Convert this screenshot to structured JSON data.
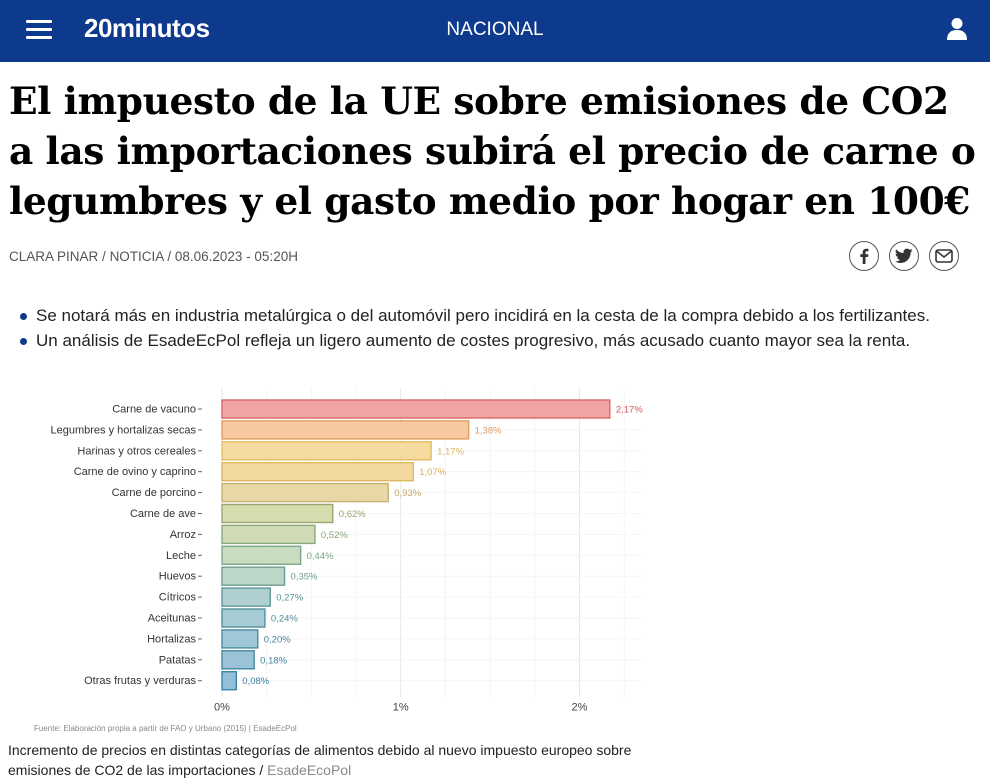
{
  "header": {
    "logo": "20minutos",
    "section": "NACIONAL"
  },
  "article": {
    "headline": "El impuesto de la UE sobre emisiones de CO2 a las importaciones subirá el precio de carne o legumbres y el gasto medio por hogar en 100€",
    "author": "CLARA PINAR",
    "type": "NOTICIA",
    "date": "08.06.2023 - 05:20H",
    "summary": [
      "Se notará más en industria metalúrgica o del automóvil pero incidirá en la cesta de la compra debido a los fertilizantes.",
      "Un análisis de EsadeEcPol refleja un ligero aumento de costes progresivo, más acusado cuanto mayor sea la renta."
    ],
    "caption": "Incremento de precios en distintas categorías de alimentos debido al nuevo impuesto europeo sobre emisiones de CO2 de las importaciones",
    "caption_separator": "/",
    "caption_credit": "EsadeEcoPol"
  },
  "share_icons": [
    "facebook-icon",
    "twitter-icon",
    "email-icon"
  ],
  "colors": {
    "brand": "#0d3a8c"
  },
  "chart_data": {
    "type": "bar",
    "orientation": "horizontal",
    "categories": [
      "Carne de vacuno",
      "Legumbres y hortalizas secas",
      "Harinas y otros cereales",
      "Carne de ovino y caprino",
      "Carne de porcino",
      "Carne de ave",
      "Arroz",
      "Leche",
      "Huevos",
      "Cítricos",
      "Aceitunas",
      "Hortalizas",
      "Patatas",
      "Otras frutas y verduras"
    ],
    "values": [
      2.17,
      1.38,
      1.17,
      1.07,
      0.93,
      0.62,
      0.52,
      0.44,
      0.35,
      0.27,
      0.24,
      0.2,
      0.18,
      0.08
    ],
    "value_labels": [
      "2,17%",
      "1,38%",
      "1,17%",
      "1,07%",
      "0,93%",
      "0,62%",
      "0,52%",
      "0,44%",
      "0,35%",
      "0,27%",
      "0,24%",
      "0,20%",
      "0,18%",
      "0,08%"
    ],
    "bar_colors": [
      "#f2a3a3",
      "#f6c9a0",
      "#f5dba0",
      "#f3d9a0",
      "#e8d8a8",
      "#d7dcae",
      "#cfdcb6",
      "#c8dcc0",
      "#bcd6c8",
      "#b0cfd0",
      "#a7cbd4",
      "#a0c7d6",
      "#9bc3d8",
      "#93bfda"
    ],
    "bar_stroke_colors": [
      "#d96a6a",
      "#e0a060",
      "#e2be60",
      "#ddb860",
      "#c8b070",
      "#9aa870",
      "#8aa878",
      "#7ea88a",
      "#6e9e92",
      "#5e969c",
      "#52909e",
      "#4a8ca2",
      "#4488a4",
      "#3c84a6"
    ],
    "label_colors": [
      "#d85a5a",
      "#e09a60",
      "#ddb860",
      "#d8b060",
      "#c0a868",
      "#98a670",
      "#88a478",
      "#7aa488",
      "#6a9c92",
      "#5a949a",
      "#4e8e9e",
      "#4688a0",
      "#4084a2",
      "#3880a4"
    ],
    "xticks": [
      "0%",
      "1%",
      "2%"
    ],
    "xlim": [
      0,
      2.35
    ],
    "xlabel": "",
    "ylabel": "",
    "source": "Fuente: Elaboración propia a partir de FAO y Urbano (2015) | EsadeEcPol"
  }
}
